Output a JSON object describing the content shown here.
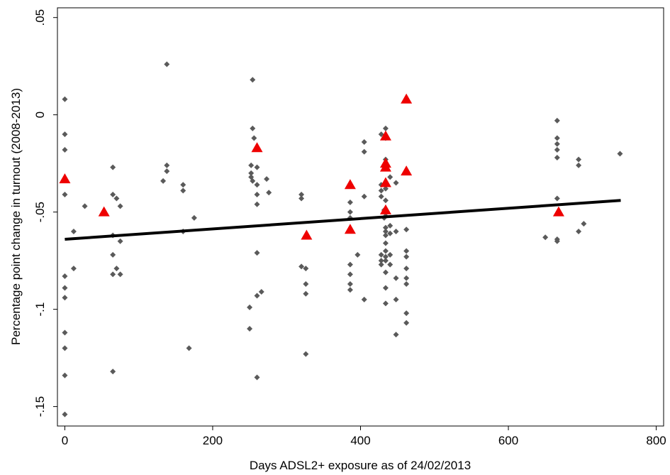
{
  "chart_data": {
    "type": "scatter",
    "title": "",
    "xlabel": "Days ADSL2+ exposure as of 24/02/2013",
    "ylabel": "Percentage point change in turnout (2008-2013)",
    "xlim": [
      -10,
      810
    ],
    "ylim": [
      -0.16,
      0.055
    ],
    "xticks": [
      0,
      200,
      400,
      600,
      800
    ],
    "xtick_labels": [
      "0",
      "200",
      "400",
      "600",
      "800"
    ],
    "yticks": [
      -0.15,
      -0.1,
      -0.05,
      0,
      0.05
    ],
    "ytick_labels": [
      "-.15",
      "-.1",
      "-.05",
      "0",
      ".05"
    ],
    "grid": false,
    "legend": "none",
    "colors": {
      "points": "#5a5a5a",
      "highlight": "#ee0000",
      "fit": "#000000"
    },
    "series": [
      {
        "marker": "diamond",
        "points": [
          [
            0,
            0.008
          ],
          [
            0,
            -0.01
          ],
          [
            0,
            -0.018
          ],
          [
            0,
            -0.041
          ],
          [
            0,
            -0.083
          ],
          [
            0,
            -0.089
          ],
          [
            0,
            -0.094
          ],
          [
            0,
            -0.112
          ],
          [
            0,
            -0.12
          ],
          [
            0,
            -0.134
          ],
          [
            0,
            -0.154
          ],
          [
            12,
            -0.06
          ],
          [
            12,
            -0.079
          ],
          [
            27,
            -0.047
          ],
          [
            65,
            -0.027
          ],
          [
            65,
            -0.041
          ],
          [
            65,
            -0.062
          ],
          [
            65,
            -0.072
          ],
          [
            65,
            -0.082
          ],
          [
            65,
            -0.132
          ],
          [
            70,
            -0.043
          ],
          [
            70,
            -0.079
          ],
          [
            75,
            -0.047
          ],
          [
            75,
            -0.065
          ],
          [
            75,
            -0.082
          ],
          [
            133,
            -0.034
          ],
          [
            138,
            0.026
          ],
          [
            138,
            -0.026
          ],
          [
            138,
            -0.029
          ],
          [
            160,
            -0.036
          ],
          [
            160,
            -0.039
          ],
          [
            160,
            -0.06
          ],
          [
            168,
            -0.12
          ],
          [
            175,
            -0.053
          ],
          [
            250,
            -0.099
          ],
          [
            250,
            -0.11
          ],
          [
            252,
            -0.026
          ],
          [
            252,
            -0.03
          ],
          [
            252,
            -0.032
          ],
          [
            254,
            0.018
          ],
          [
            254,
            -0.007
          ],
          [
            254,
            -0.034
          ],
          [
            256,
            -0.012
          ],
          [
            260,
            -0.027
          ],
          [
            260,
            -0.036
          ],
          [
            260,
            -0.041
          ],
          [
            260,
            -0.046
          ],
          [
            260,
            -0.071
          ],
          [
            260,
            -0.093
          ],
          [
            260,
            -0.135
          ],
          [
            266,
            -0.091
          ],
          [
            273,
            -0.033
          ],
          [
            276,
            -0.04
          ],
          [
            320,
            -0.041
          ],
          [
            320,
            -0.043
          ],
          [
            320,
            -0.078
          ],
          [
            326,
            -0.079
          ],
          [
            326,
            -0.087
          ],
          [
            326,
            -0.092
          ],
          [
            326,
            -0.123
          ],
          [
            386,
            -0.045
          ],
          [
            386,
            -0.05
          ],
          [
            386,
            -0.053
          ],
          [
            386,
            -0.077
          ],
          [
            386,
            -0.082
          ],
          [
            386,
            -0.087
          ],
          [
            386,
            -0.09
          ],
          [
            396,
            -0.072
          ],
          [
            405,
            -0.014
          ],
          [
            405,
            -0.019
          ],
          [
            405,
            -0.042
          ],
          [
            405,
            -0.095
          ],
          [
            428,
            -0.01
          ],
          [
            428,
            -0.036
          ],
          [
            428,
            -0.039
          ],
          [
            428,
            -0.042
          ],
          [
            428,
            -0.072
          ],
          [
            428,
            -0.075
          ],
          [
            428,
            -0.077
          ],
          [
            432,
            -0.049
          ],
          [
            432,
            -0.053
          ],
          [
            434,
            -0.007
          ],
          [
            434,
            -0.012
          ],
          [
            434,
            -0.023
          ],
          [
            434,
            -0.026
          ],
          [
            434,
            -0.038
          ],
          [
            434,
            -0.044
          ],
          [
            434,
            -0.052
          ],
          [
            434,
            -0.058
          ],
          [
            434,
            -0.06
          ],
          [
            434,
            -0.062
          ],
          [
            434,
            -0.066
          ],
          [
            434,
            -0.07
          ],
          [
            434,
            -0.073
          ],
          [
            434,
            -0.075
          ],
          [
            434,
            -0.081
          ],
          [
            434,
            -0.089
          ],
          [
            434,
            -0.097
          ],
          [
            440,
            -0.032
          ],
          [
            440,
            -0.057
          ],
          [
            440,
            -0.061
          ],
          [
            440,
            -0.072
          ],
          [
            440,
            -0.077
          ],
          [
            448,
            -0.035
          ],
          [
            448,
            -0.06
          ],
          [
            448,
            -0.084
          ],
          [
            448,
            -0.095
          ],
          [
            448,
            -0.113
          ],
          [
            462,
            -0.059
          ],
          [
            462,
            -0.07
          ],
          [
            462,
            -0.073
          ],
          [
            462,
            -0.079
          ],
          [
            462,
            -0.084
          ],
          [
            462,
            -0.087
          ],
          [
            462,
            -0.102
          ],
          [
            462,
            -0.107
          ],
          [
            650,
            -0.063
          ],
          [
            666,
            -0.003
          ],
          [
            666,
            -0.012
          ],
          [
            666,
            -0.015
          ],
          [
            666,
            -0.018
          ],
          [
            666,
            -0.022
          ],
          [
            666,
            -0.043
          ],
          [
            666,
            -0.064
          ],
          [
            666,
            -0.065
          ],
          [
            695,
            -0.023
          ],
          [
            695,
            -0.026
          ],
          [
            695,
            -0.06
          ],
          [
            702,
            -0.056
          ],
          [
            751,
            -0.02
          ]
        ]
      },
      {
        "marker": "triangle",
        "points": [
          [
            0,
            -0.033
          ],
          [
            53,
            -0.05
          ],
          [
            260,
            -0.017
          ],
          [
            327,
            -0.062
          ],
          [
            386,
            -0.036
          ],
          [
            386,
            -0.059
          ],
          [
            434,
            -0.011
          ],
          [
            434,
            -0.025
          ],
          [
            434,
            -0.027
          ],
          [
            434,
            -0.035
          ],
          [
            434,
            -0.049
          ],
          [
            462,
            0.008
          ],
          [
            462,
            -0.029
          ],
          [
            668,
            -0.05
          ]
        ]
      }
    ],
    "fit_line": {
      "x": [
        0,
        752
      ],
      "y": [
        -0.064,
        -0.044
      ]
    }
  }
}
